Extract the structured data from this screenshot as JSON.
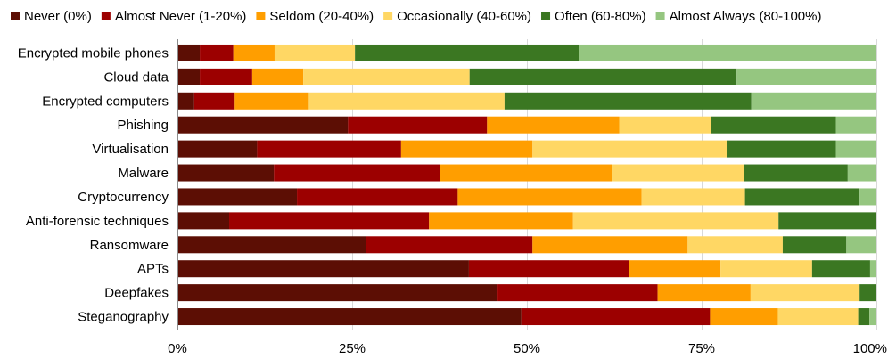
{
  "chart_data": {
    "type": "bar",
    "orientation": "horizontal",
    "stacked": true,
    "title": "",
    "xlabel": "",
    "ylabel": "",
    "xlim": [
      0,
      100
    ],
    "x_ticks": [
      {
        "value": 0,
        "label": "0%"
      },
      {
        "value": 25,
        "label": "25%"
      },
      {
        "value": 50,
        "label": "50%"
      },
      {
        "value": 75,
        "label": "75%"
      },
      {
        "value": 100,
        "label": "100%"
      }
    ],
    "grid": "vertical",
    "legend_position": "top",
    "categories": [
      "Encrypted mobile phones",
      "Cloud data",
      "Encrypted computers",
      "Phishing",
      "Virtualisation",
      "Malware",
      "Cryptocurrency",
      "Anti-forensic techniques",
      "Ransomware",
      "APTs",
      "Deepfakes",
      "Steganography"
    ],
    "series": [
      {
        "name": "Never (0%)",
        "color": "#5c0e04",
        "values": [
          3.2,
          3.2,
          2.4,
          24.4,
          11.4,
          13.8,
          17.1,
          7.4,
          27.0,
          41.7,
          45.8,
          49.2
        ]
      },
      {
        "name": "Almost Never (1-20%)",
        "color": "#9c0000",
        "values": [
          4.8,
          7.5,
          5.8,
          19.9,
          20.6,
          23.8,
          23.0,
          28.6,
          23.8,
          22.9,
          22.9,
          27.0
        ]
      },
      {
        "name": "Seldom (20-40%)",
        "color": "#ff9e00",
        "values": [
          5.9,
          7.3,
          10.6,
          18.9,
          18.8,
          24.6,
          26.3,
          20.6,
          22.2,
          13.1,
          13.3,
          9.7
        ]
      },
      {
        "name": "Occasionally (40-60%)",
        "color": "#ffd764",
        "values": [
          11.5,
          23.8,
          28.0,
          13.1,
          27.9,
          18.8,
          14.8,
          29.4,
          13.6,
          13.1,
          15.6,
          11.5
        ]
      },
      {
        "name": "Often (60-80%)",
        "color": "#3b7722",
        "values": [
          32.0,
          38.2,
          35.3,
          17.9,
          15.5,
          14.9,
          16.4,
          14.0,
          9.1,
          8.3,
          2.4,
          1.6
        ]
      },
      {
        "name": "Almost Always (80-100%)",
        "color": "#95c680",
        "values": [
          42.6,
          20.0,
          17.9,
          5.8,
          5.8,
          4.1,
          2.4,
          0.0,
          4.3,
          0.9,
          0.0,
          1.0
        ]
      }
    ]
  }
}
